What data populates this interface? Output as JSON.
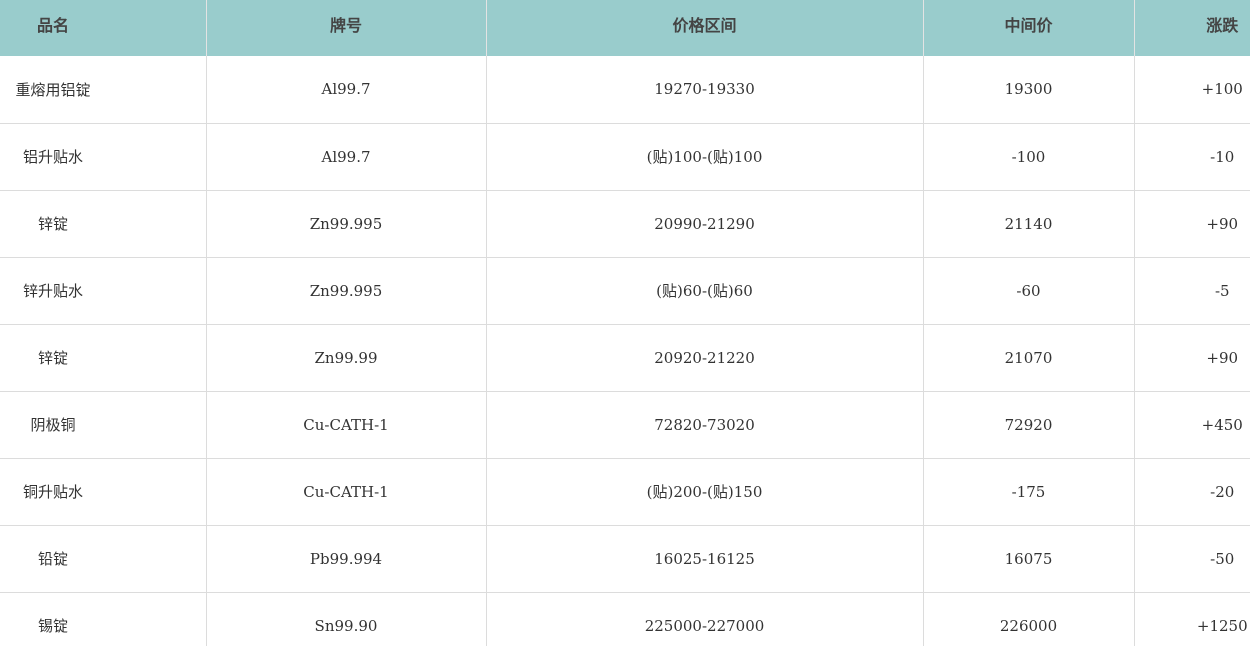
{
  "headers": [
    "品名",
    "牌号",
    "价格区间",
    "中间价",
    "涨跌"
  ],
  "header_bg": "#99cccc",
  "rows": [
    [
      "重熔用铝锭",
      "Al99.7",
      "19270-19330",
      "19300",
      "+100"
    ],
    [
      "铝升贴水",
      "Al99.7",
      "(贴)100-(贴)100",
      "-100",
      "-10"
    ],
    [
      "锌锭",
      "Zn99.995",
      "20990-21290",
      "21140",
      "+90"
    ],
    [
      "锌升贴水",
      "Zn99.995",
      "(贴)60-(贴)60",
      "-60",
      "-5"
    ],
    [
      "锌锭",
      "Zn99.99",
      "20920-21220",
      "21070",
      "+90"
    ],
    [
      "阴极铜",
      "Cu-CATH-1",
      "72820-73020",
      "72920",
      "+450"
    ],
    [
      "铜升贴水",
      "Cu-CATH-1",
      "(贴)200-(贴)150",
      "-175",
      "-20"
    ],
    [
      "铅锭",
      "Pb99.994",
      "16025-16125",
      "16075",
      "-50"
    ],
    [
      "锡锭",
      "Sn99.90",
      "225000-227000",
      "226000",
      "+1250"
    ]
  ]
}
